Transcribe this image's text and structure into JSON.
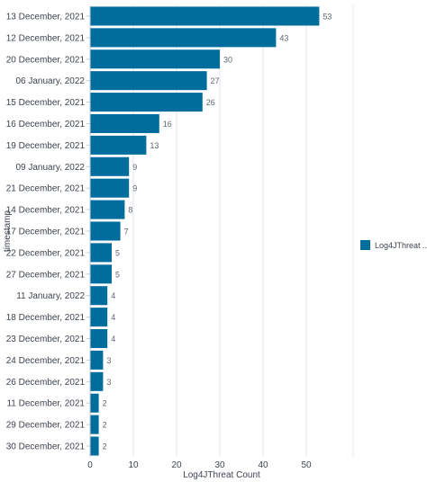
{
  "chart_data": {
    "type": "bar",
    "orientation": "horizontal",
    "xlabel": "Log4JThreat Count",
    "ylabel": "timestamp",
    "xlim": [
      0,
      60
    ],
    "xticks": [
      0,
      10,
      20,
      30,
      40,
      50
    ],
    "grid": true,
    "legend_position": "right",
    "bar_color": "#006d9c",
    "categories": [
      "13 December, 2021",
      "12 December, 2021",
      "20 December, 2021",
      "06 January, 2022",
      "15 December, 2021",
      "16 December, 2021",
      "19 December, 2021",
      "09 January, 2022",
      "21 December, 2021",
      "14 December, 2021",
      "17 December, 2021",
      "22 December, 2021",
      "27 December, 2021",
      "11 January, 2022",
      "18 December, 2021",
      "23 December, 2021",
      "24 December, 2021",
      "26 December, 2021",
      "11 December, 2021",
      "29 December, 2021",
      "30 December, 2021"
    ],
    "series": [
      {
        "name": "Log4JThreat ...",
        "values": [
          53,
          43,
          30,
          27,
          26,
          16,
          13,
          9,
          9,
          8,
          7,
          5,
          5,
          4,
          4,
          4,
          3,
          3,
          2,
          2,
          2
        ]
      }
    ]
  }
}
